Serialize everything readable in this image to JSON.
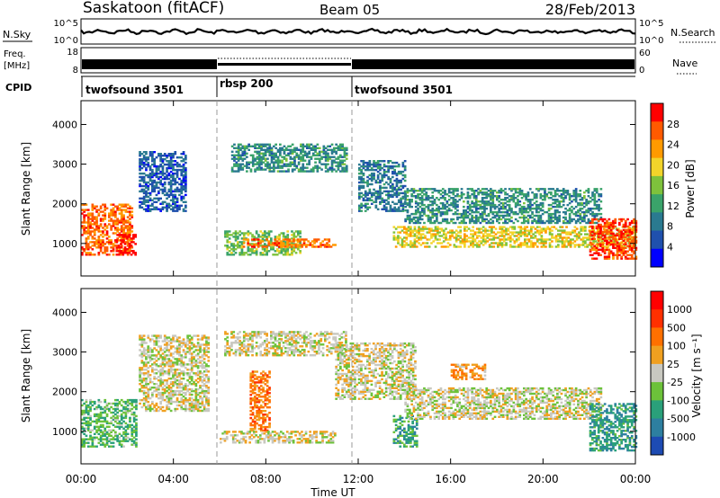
{
  "header": {
    "site": "Saskatoon (fitACF)",
    "beam": "Beam 05",
    "date": "28/Feb/2013"
  },
  "noise_panel": {
    "left_label": "N.Sky",
    "right_label": "N.Search",
    "left_ticks": [
      "10^5",
      "10^0"
    ],
    "right_ticks": [
      "10^5",
      "10^0"
    ]
  },
  "freq_panel": {
    "left_label_line1": "Freq.",
    "left_label_line2": "[MHz]",
    "right_label": "Nave",
    "left_ticks": [
      "18",
      "8"
    ],
    "right_ticks": [
      "60",
      "0"
    ]
  },
  "cpid_panel": {
    "label": "CPID",
    "segments": [
      {
        "name": "twofsound 3501",
        "start_hour": 0,
        "end_hour": 6
      },
      {
        "name": "rbsp 200",
        "start_hour": 6,
        "end_hour": 12
      },
      {
        "name": "twofsound 3501",
        "start_hour": 12,
        "end_hour": 24
      }
    ]
  },
  "power_panel": {
    "ylabel": "Slant Range [km]",
    "yticks": [
      "4000",
      "3000",
      "2000",
      "1000"
    ],
    "colorbar_label": "Power [dB]",
    "colorbar_ticks": [
      "28",
      "24",
      "20",
      "16",
      "12",
      "8",
      "4"
    ],
    "colors": [
      "#0000ff",
      "#1f50ad",
      "#2a7a90",
      "#3aa36a",
      "#7ec23c",
      "#f2d42a",
      "#ff9a00",
      "#ff5a00",
      "#ff0000"
    ]
  },
  "velocity_panel": {
    "ylabel": "Slant Range [km]",
    "yticks": [
      "4000",
      "3000",
      "2000",
      "1000"
    ],
    "colorbar_label": "Velocity [m s⁻¹]",
    "colorbar_ticks": [
      "1000",
      "500",
      "100",
      "25",
      "-25",
      "-100",
      "-500",
      "-1000"
    ],
    "colors": [
      "#1d4bb3",
      "#2d7fa0",
      "#2aa07a",
      "#6cc23a",
      "#c8c8c0",
      "#f0a020",
      "#ff7000",
      "#ff3000",
      "#ff0000"
    ]
  },
  "time_axis": {
    "label": "Time UT",
    "ticks": [
      "00:00",
      "04:00",
      "08:00",
      "12:00",
      "16:00",
      "20:00",
      "00:00"
    ]
  },
  "chart_data": {
    "type": "heatmap",
    "title": "Saskatoon (fitACF) Beam 05 28/Feb/2013",
    "xlabel": "Time UT",
    "ylabel": "Slant Range [km]",
    "xlim_hours": [
      0,
      24
    ],
    "ylim_km": [
      180,
      4600
    ],
    "panels": [
      {
        "name": "Power",
        "units": "dB",
        "clim": [
          0,
          30
        ],
        "regions": [
          {
            "t": [
              0.0,
              2.2
            ],
            "r": [
              700,
              2000
            ],
            "value": 24
          },
          {
            "t": [
              1.5,
              2.4
            ],
            "r": [
              700,
              1200
            ],
            "value": 30
          },
          {
            "t": [
              2.5,
              4.5
            ],
            "r": [
              1800,
              3300
            ],
            "value": 6
          },
          {
            "t": [
              6.2,
              9.5
            ],
            "r": [
              700,
              1300
            ],
            "value": 14
          },
          {
            "t": [
              7.0,
              11.0
            ],
            "r": [
              900,
              1100
            ],
            "value": 24
          },
          {
            "t": [
              6.5,
              11.5
            ],
            "r": [
              2800,
              3500
            ],
            "value": 10
          },
          {
            "t": [
              12.0,
              14.0
            ],
            "r": [
              1800,
              3100
            ],
            "value": 8
          },
          {
            "t": [
              13.5,
              24.0
            ],
            "r": [
              900,
              1400
            ],
            "value": 18
          },
          {
            "t": [
              14.0,
              22.5
            ],
            "r": [
              1500,
              2400
            ],
            "value": 10
          },
          {
            "t": [
              22.0,
              24.0
            ],
            "r": [
              600,
              1600
            ],
            "value": 26
          }
        ]
      },
      {
        "name": "Velocity",
        "units": "m s-1",
        "clim": [
          -1000,
          1000
        ],
        "regions": [
          {
            "t": [
              0.0,
              2.4
            ],
            "r": [
              600,
              1800
            ],
            "value": -300
          },
          {
            "t": [
              2.5,
              5.5
            ],
            "r": [
              1500,
              3400
            ],
            "value": 0
          },
          {
            "t": [
              6.2,
              11.5
            ],
            "r": [
              2900,
              3500
            ],
            "value": 0
          },
          {
            "t": [
              7.3,
              8.2
            ],
            "r": [
              1000,
              2500
            ],
            "value": 400
          },
          {
            "t": [
              6.0,
              11.0
            ],
            "r": [
              700,
              1000
            ],
            "value": 60
          },
          {
            "t": [
              11.0,
              14.5
            ],
            "r": [
              1800,
              3200
            ],
            "value": 0
          },
          {
            "t": [
              13.5,
              14.5
            ],
            "r": [
              600,
              1400
            ],
            "value": -400
          },
          {
            "t": [
              14.0,
              22.5
            ],
            "r": [
              1300,
              2100
            ],
            "value": 0
          },
          {
            "t": [
              16.0,
              17.5
            ],
            "r": [
              2300,
              2700
            ],
            "value": 300
          },
          {
            "t": [
              22.0,
              24.0
            ],
            "r": [
              500,
              1700
            ],
            "value": -500
          }
        ]
      }
    ]
  }
}
